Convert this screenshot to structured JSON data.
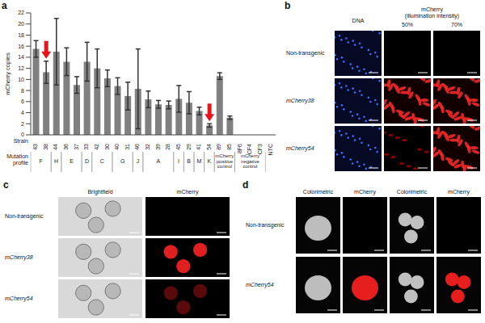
{
  "chart_data": {
    "panel": "a",
    "type": "bar",
    "categories": [
      "43",
      "38",
      "44",
      "36",
      "37",
      "33",
      "42",
      "30",
      "40",
      "31",
      "46",
      "32",
      "39",
      "28",
      "45",
      "29",
      "41",
      "54",
      "89",
      "85",
      "8F6",
      "CF4",
      "CF3",
      "NTC"
    ],
    "values": [
      15.5,
      11.3,
      15,
      13.2,
      9,
      13.2,
      12,
      10.2,
      8.8,
      7,
      8.3,
      6.4,
      5.5,
      5.4,
      6.5,
      5.8,
      4.3,
      1.7,
      10.6,
      3.1,
      0,
      0,
      0,
      0
    ],
    "errors": [
      1.5,
      2,
      6,
      2.5,
      1.5,
      3.5,
      3.5,
      1.5,
      1.5,
      2.5,
      7.2,
      1.5,
      0.7,
      0.7,
      2.4,
      2,
      0.7,
      0.3,
      0.6,
      0.3,
      0,
      0,
      0,
      0
    ],
    "color": "#808080",
    "ylim": [
      0,
      22
    ],
    "yticks": [
      0,
      2,
      4,
      6,
      8,
      10,
      12,
      14,
      16,
      18,
      20,
      22
    ],
    "y_label": "mCherry copies",
    "x_label": "Strain",
    "group_label": "Mutation profile",
    "groups": [
      {
        "label": "F",
        "categories": [
          "43",
          "38"
        ]
      },
      {
        "label": "H",
        "categories": [
          "44"
        ]
      },
      {
        "label": "E",
        "categories": [
          "36",
          "37"
        ]
      },
      {
        "label": "D",
        "categories": [
          "33"
        ]
      },
      {
        "label": "C",
        "categories": [
          "42",
          "30"
        ]
      },
      {
        "label": "G",
        "categories": [
          "40",
          "31"
        ]
      },
      {
        "label": "J",
        "categories": [
          "46"
        ]
      },
      {
        "label": "A",
        "categories": [
          "32",
          "39",
          "28"
        ]
      },
      {
        "label": "I",
        "categories": [
          "45"
        ]
      },
      {
        "label": "B",
        "categories": [
          "29"
        ]
      },
      {
        "label": "M",
        "categories": [
          "41"
        ]
      },
      {
        "label": "K",
        "categories": [
          "54"
        ]
      },
      {
        "label": "mCherry positive control",
        "categories": [
          "89",
          "85"
        ]
      },
      {
        "label": "mCherry negative control",
        "categories": [
          "8F6",
          "CF4",
          "CF3"
        ]
      }
    ],
    "arrows": [
      "38",
      "54"
    ],
    "arrow_color": "#e8141c",
    "grid": false
  },
  "panels": [
    {
      "panel": "b",
      "columns": [
        {
          "head": "DNA"
        },
        {
          "head": "mCherry (illumination intensity)",
          "sub": [
            "50%",
            "70%"
          ]
        }
      ],
      "rows": [
        "Non-transgenic",
        "mCherry38",
        "mCherry54"
      ]
    },
    {
      "panel": "c",
      "columns": [
        "Brightfield",
        "mCherry"
      ],
      "rows": [
        "Non-transgenic",
        "mCherry38",
        "mCherry54"
      ]
    },
    {
      "panel": "d",
      "columns": [
        "Colorimetric",
        "mCherry",
        "Colorimetric",
        "mCherry"
      ],
      "rows": [
        "Non-transgenic",
        "mCherry54"
      ]
    }
  ]
}
